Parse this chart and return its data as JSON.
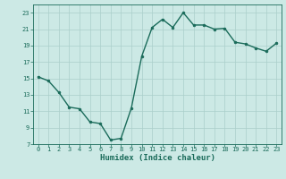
{
  "x": [
    0,
    1,
    2,
    3,
    4,
    5,
    6,
    7,
    8,
    9,
    10,
    11,
    12,
    13,
    14,
    15,
    16,
    17,
    18,
    19,
    20,
    21,
    22,
    23
  ],
  "y": [
    15.2,
    14.7,
    13.3,
    11.5,
    11.3,
    9.7,
    9.5,
    7.5,
    7.7,
    11.4,
    17.7,
    21.2,
    22.2,
    21.2,
    23.0,
    21.5,
    21.5,
    21.0,
    21.1,
    19.4,
    19.2,
    18.7,
    18.3,
    19.3
  ],
  "xlabel": "Humidex (Indice chaleur)",
  "ylim": [
    7,
    24
  ],
  "xlim": [
    -0.5,
    23.5
  ],
  "yticks": [
    7,
    9,
    11,
    13,
    15,
    17,
    19,
    21,
    23
  ],
  "xticks": [
    0,
    1,
    2,
    3,
    4,
    5,
    6,
    7,
    8,
    9,
    10,
    11,
    12,
    13,
    14,
    15,
    16,
    17,
    18,
    19,
    20,
    21,
    22,
    23
  ],
  "line_color": "#1a6b5a",
  "marker_color": "#1a6b5a",
  "bg_color": "#cce9e5",
  "grid_color": "#aacfca",
  "xlabel_color": "#1a6b5a",
  "tick_color": "#1a6b5a",
  "marker": "o",
  "markersize": 2.0,
  "linewidth": 1.0,
  "tick_fontsize": 5.0,
  "xlabel_fontsize": 6.5
}
